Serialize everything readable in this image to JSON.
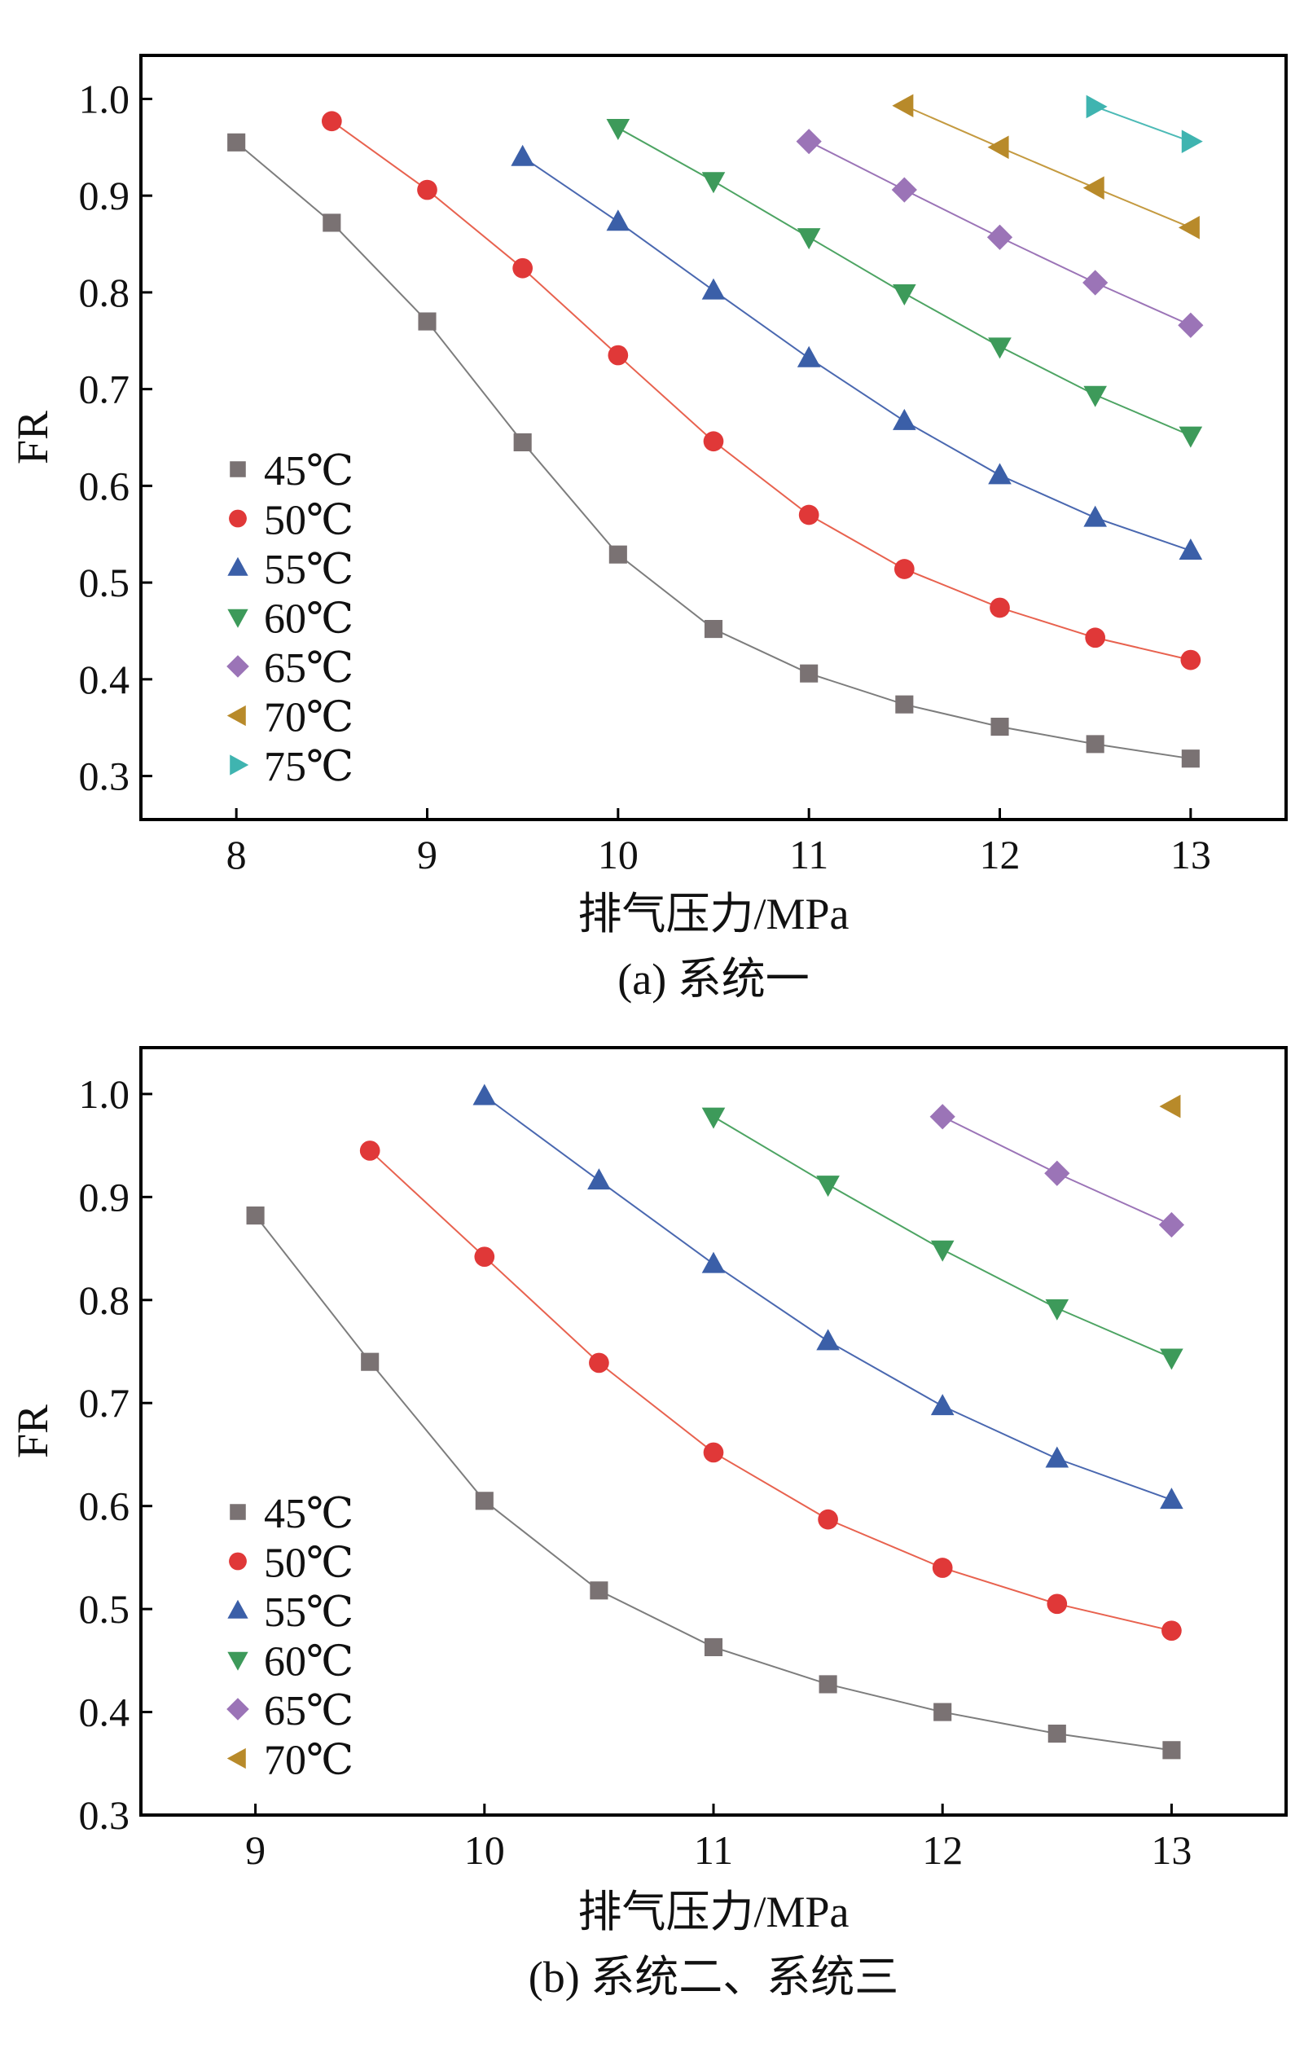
{
  "chart_data": [
    {
      "type": "line",
      "caption": "(a) 系统一",
      "xlabel": "排气压力/MPa",
      "ylabel": "FR",
      "xlim": [
        7.5,
        13.5
      ],
      "ylim": [
        0.255,
        1.045
      ],
      "xticks": [
        8,
        9,
        10,
        11,
        12,
        13
      ],
      "yticks": [
        0.3,
        0.4,
        0.5,
        0.6,
        0.7,
        0.8,
        0.9,
        1.0
      ],
      "ytick_labels": [
        "0.3",
        "0.4",
        "0.5",
        "0.6",
        "0.7",
        "0.8",
        "0.9",
        "1.0"
      ],
      "grid": false,
      "legend_position": "lower-left",
      "series": [
        {
          "name": "45℃",
          "marker": "square",
          "color": "#7a7273",
          "line_color": "#7d7d7d",
          "x": [
            8,
            8.5,
            9,
            9.5,
            10,
            10.5,
            11,
            11.5,
            12,
            12.5,
            13
          ],
          "y": [
            0.955,
            0.872,
            0.77,
            0.645,
            0.529,
            0.452,
            0.406,
            0.374,
            0.351,
            0.333,
            0.318
          ]
        },
        {
          "name": "50℃",
          "marker": "circle",
          "color": "#e03838",
          "line_color": "#e8624f",
          "x": [
            8.5,
            9,
            9.5,
            10,
            10.5,
            11,
            11.5,
            12,
            12.5,
            13
          ],
          "y": [
            0.977,
            0.906,
            0.825,
            0.735,
            0.646,
            0.57,
            0.514,
            0.474,
            0.443,
            0.42
          ]
        },
        {
          "name": "55℃",
          "marker": "triangle-up",
          "color": "#3b5fa8",
          "line_color": "#4a68b0",
          "x": [
            9.5,
            10,
            10.5,
            11,
            11.5,
            12,
            12.5,
            13
          ],
          "y": [
            0.94,
            0.873,
            0.802,
            0.732,
            0.667,
            0.611,
            0.567,
            0.533
          ]
        },
        {
          "name": "60℃",
          "marker": "triangle-down",
          "color": "#3d9a5a",
          "line_color": "#4da463",
          "x": [
            10,
            10.5,
            11,
            11.5,
            12,
            12.5,
            13
          ],
          "y": [
            0.97,
            0.915,
            0.857,
            0.799,
            0.744,
            0.694,
            0.652
          ]
        },
        {
          "name": "65℃",
          "marker": "diamond",
          "color": "#9b74b7",
          "line_color": "#9b74b7",
          "x": [
            11,
            11.5,
            12,
            12.5,
            13
          ],
          "y": [
            0.956,
            0.906,
            0.857,
            0.81,
            0.766
          ]
        },
        {
          "name": "70℃",
          "marker": "triangle-left",
          "color": "#b88a2a",
          "line_color": "#c49a40",
          "x": [
            11.5,
            12,
            12.5,
            13
          ],
          "y": [
            0.993,
            0.95,
            0.908,
            0.867
          ]
        },
        {
          "name": "75℃",
          "marker": "triangle-right",
          "color": "#3fb4b0",
          "line_color": "#4cbab6",
          "x": [
            12.5,
            13
          ],
          "y": [
            0.992,
            0.956
          ]
        }
      ]
    },
    {
      "type": "line",
      "caption": "(b) 系统二、系统三",
      "xlabel": "排气压力/MPa",
      "ylabel": "FR",
      "xlim": [
        8.5,
        13.5
      ],
      "ylim": [
        0.3,
        1.045
      ],
      "xticks": [
        9,
        10,
        11,
        12,
        13
      ],
      "yticks": [
        0.3,
        0.4,
        0.5,
        0.6,
        0.7,
        0.8,
        0.9,
        1.0
      ],
      "ytick_labels": [
        "0.3",
        "0.4",
        "0.5",
        "0.6",
        "0.7",
        "0.8",
        "0.9",
        "1.0"
      ],
      "grid": false,
      "legend_position": "lower-left",
      "series": [
        {
          "name": "45℃",
          "marker": "square",
          "color": "#7a7273",
          "line_color": "#7d7d7d",
          "x": [
            9,
            9.5,
            10,
            10.5,
            11,
            11.5,
            12,
            12.5,
            13
          ],
          "y": [
            0.882,
            0.74,
            0.605,
            0.518,
            0.463,
            0.427,
            0.4,
            0.379,
            0.363
          ]
        },
        {
          "name": "50℃",
          "marker": "circle",
          "color": "#e03838",
          "line_color": "#e8624f",
          "x": [
            9.5,
            10,
            10.5,
            11,
            11.5,
            12,
            12.5,
            13
          ],
          "y": [
            0.945,
            0.842,
            0.739,
            0.652,
            0.587,
            0.54,
            0.505,
            0.479
          ]
        },
        {
          "name": "55℃",
          "marker": "triangle-up",
          "color": "#3b5fa8",
          "line_color": "#4a68b0",
          "x": [
            10,
            10.5,
            11,
            11.5,
            12,
            12.5,
            13
          ],
          "y": [
            0.998,
            0.916,
            0.835,
            0.76,
            0.697,
            0.646,
            0.606
          ]
        },
        {
          "name": "60℃",
          "marker": "triangle-down",
          "color": "#3d9a5a",
          "line_color": "#4da463",
          "x": [
            11,
            11.5,
            12,
            12.5,
            13
          ],
          "y": [
            0.978,
            0.912,
            0.849,
            0.792,
            0.744
          ]
        },
        {
          "name": "65℃",
          "marker": "diamond",
          "color": "#9b74b7",
          "line_color": "#9b74b7",
          "x": [
            12,
            12.5,
            13
          ],
          "y": [
            0.978,
            0.923,
            0.873
          ]
        },
        {
          "name": "70℃",
          "marker": "triangle-left",
          "color": "#b88a2a",
          "line_color": "#c49a40",
          "x": [
            13
          ],
          "y": [
            0.988
          ]
        }
      ]
    }
  ]
}
